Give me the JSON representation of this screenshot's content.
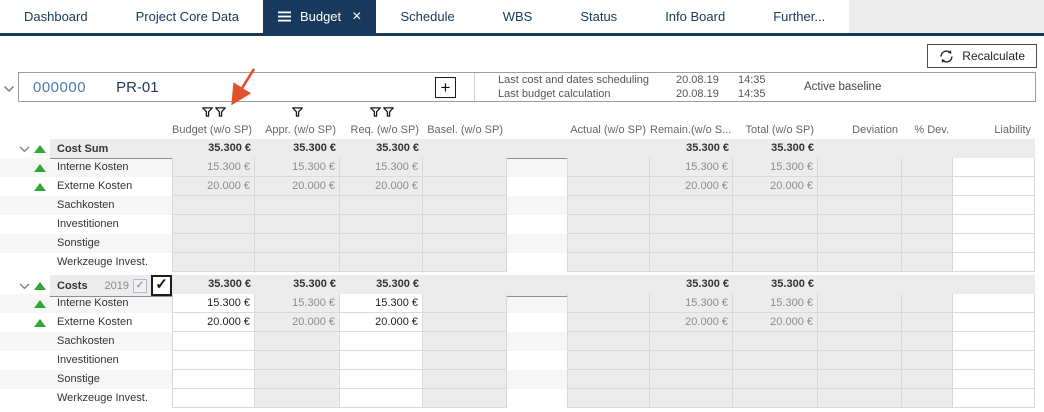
{
  "tabs": {
    "items": [
      {
        "label": "Dashboard",
        "active": false
      },
      {
        "label": "Project Core Data",
        "active": false
      },
      {
        "label": "Budget",
        "active": true
      },
      {
        "label": "Schedule",
        "active": false
      },
      {
        "label": "WBS",
        "active": false
      },
      {
        "label": "Status",
        "active": false
      },
      {
        "label": "Info Board",
        "active": false
      },
      {
        "label": "Further...",
        "active": false
      }
    ]
  },
  "toolbar": {
    "recalculate_label": "Recalculate"
  },
  "project": {
    "id": "000000",
    "code": "PR-01",
    "info": [
      {
        "label": "Last cost and dates scheduling",
        "date": "20.08.19",
        "time": "14:35"
      },
      {
        "label": "Last budget calculation",
        "date": "20.08.19",
        "time": "14:35"
      }
    ],
    "baseline_label": "Active baseline"
  },
  "columns": [
    {
      "key": "budget",
      "label": "Budget (w/o SP)",
      "filter_icons": 2
    },
    {
      "key": "appr",
      "label": "Appr. (w/o SP)",
      "filter_icons": 1
    },
    {
      "key": "req",
      "label": "Req. (w/o SP)",
      "filter_icons": 2
    },
    {
      "key": "basel",
      "label": "Basel. (w/o SP)",
      "filter_icons": 0
    },
    {
      "key": "actual",
      "label": "Actual (w/o SP)",
      "filter_icons": 0
    },
    {
      "key": "remain",
      "label": "Remain.(w/o S...",
      "filter_icons": 0
    },
    {
      "key": "total",
      "label": "Total (w/o SP)",
      "filter_icons": 0
    },
    {
      "key": "deviation",
      "label": "Deviation",
      "filter_icons": 0
    },
    {
      "key": "pdev",
      "label": "% Dev.",
      "filter_icons": 0
    },
    {
      "key": "liability",
      "label": "Liability",
      "filter_icons": 0
    }
  ],
  "blocks": [
    {
      "summary": {
        "label": "Cost Sum",
        "values": {
          "budget": "35.300 €",
          "appr": "35.300 €",
          "req": "35.300 €",
          "remain": "35.300 €",
          "total": "35.300 €"
        }
      },
      "editable_columns": [],
      "rows": [
        {
          "label": "Interne Kosten",
          "trend_up": true,
          "values": {
            "budget": "15.300 €",
            "appr": "15.300 €",
            "req": "15.300 €",
            "remain": "15.300 €",
            "total": "15.300 €"
          }
        },
        {
          "label": "Externe Kosten",
          "trend_up": true,
          "values": {
            "budget": "20.000 €",
            "appr": "20.000 €",
            "req": "20.000 €",
            "remain": "20.000 €",
            "total": "20.000 €"
          }
        },
        {
          "label": "Sachkosten",
          "trend_up": false,
          "values": {}
        },
        {
          "label": "Investitionen",
          "trend_up": false,
          "values": {}
        },
        {
          "label": "Sonstige",
          "trend_up": false,
          "values": {}
        },
        {
          "label": "Werkzeuge Invest.",
          "trend_up": false,
          "values": {}
        }
      ]
    },
    {
      "summary": {
        "label": "Costs",
        "year": "2019",
        "checkboxes": true,
        "values": {
          "budget": "35.300 €",
          "appr": "35.300 €",
          "req": "35.300 €",
          "remain": "35.300 €",
          "total": "35.300 €"
        }
      },
      "editable_columns": [
        "budget",
        "req"
      ],
      "rows": [
        {
          "label": "Interne Kosten",
          "trend_up": true,
          "values": {
            "budget": "15.300 €",
            "appr": "15.300 €",
            "req": "15.300 €",
            "remain": "15.300 €",
            "total": "15.300 €"
          }
        },
        {
          "label": "Externe Kosten",
          "trend_up": true,
          "values": {
            "budget": "20.000 €",
            "appr": "20.000 €",
            "req": "20.000 €",
            "remain": "20.000 €",
            "total": "20.000 €"
          }
        },
        {
          "label": "Sachkosten",
          "trend_up": false,
          "values": {}
        },
        {
          "label": "Investitionen",
          "trend_up": false,
          "values": {}
        },
        {
          "label": "Sonstige",
          "trend_up": false,
          "values": {}
        },
        {
          "label": "Werkzeuge Invest.",
          "trend_up": false,
          "values": {}
        }
      ]
    }
  ],
  "checkmark": "✓",
  "colors": {
    "navy": "#17395c",
    "link_blue": "#4d7ba6",
    "green": "#2fa832",
    "arrow_red": "#e2512e"
  }
}
